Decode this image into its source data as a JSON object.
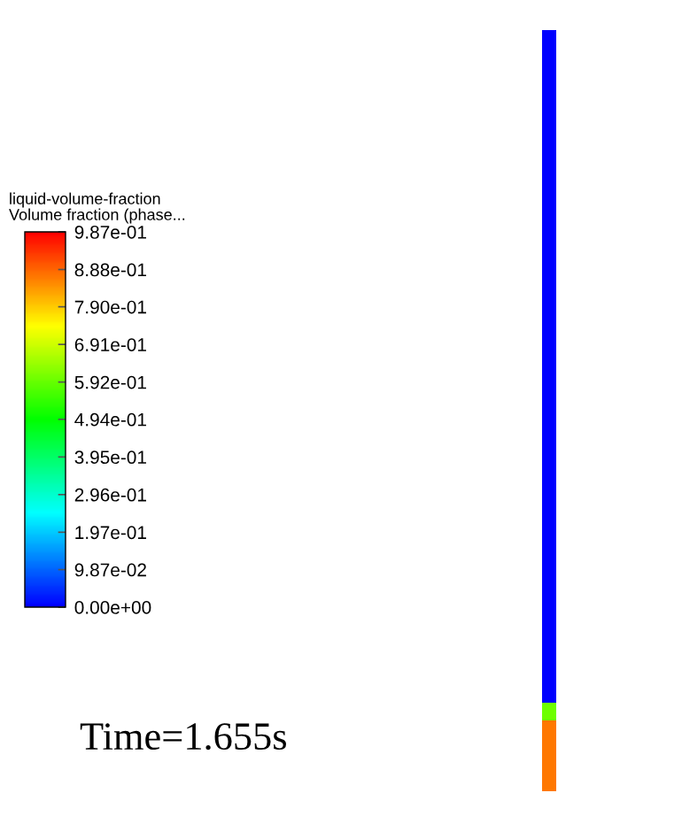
{
  "chart_data": {
    "type": "heatmap",
    "title": "liquid-volume-fraction",
    "clabel": "Volume fraction (phase...",
    "categories": [
      null
    ],
    "y_categories": [
      null,
      null,
      null,
      null,
      null,
      null,
      null,
      null,
      null,
      null,
      null,
      null,
      null,
      null,
      null,
      null,
      null,
      null,
      null,
      null,
      null,
      null,
      null,
      null,
      null,
      null,
      null,
      null,
      null,
      null,
      null,
      null,
      null,
      null,
      null,
      null,
      null,
      null,
      null,
      null,
      null,
      null,
      null
    ],
    "cells": [
      [
        0.0
      ],
      [
        0.0
      ],
      [
        0.0
      ],
      [
        0.0
      ],
      [
        0.0
      ],
      [
        0.0
      ],
      [
        0.0
      ],
      [
        0.0
      ],
      [
        0.0
      ],
      [
        0.0
      ],
      [
        0.0
      ],
      [
        0.0
      ],
      [
        0.0
      ],
      [
        0.0
      ],
      [
        0.0
      ],
      [
        0.0
      ],
      [
        0.0
      ],
      [
        0.0
      ],
      [
        0.0
      ],
      [
        0.0
      ],
      [
        0.0
      ],
      [
        0.0
      ],
      [
        0.0
      ],
      [
        0.0
      ],
      [
        0.0
      ],
      [
        0.0
      ],
      [
        0.0
      ],
      [
        0.0
      ],
      [
        0.0
      ],
      [
        0.0
      ],
      [
        0.0
      ],
      [
        0.0
      ],
      [
        0.0
      ],
      [
        0.0
      ],
      [
        0.0
      ],
      [
        0.0
      ],
      [
        0.0
      ],
      [
        0.0
      ],
      [
        0.6
      ],
      [
        0.87
      ],
      [
        0.87
      ],
      [
        0.87
      ],
      [
        0.87
      ]
    ],
    "clim": [
      0,
      0.987
    ],
    "cticks": [
      {
        "value": 0,
        "label": "0.00e+00"
      },
      {
        "value": 0.0987,
        "label": "9.87e-02"
      },
      {
        "value": 0.197,
        "label": "1.97e-01"
      },
      {
        "value": 0.296,
        "label": "2.96e-01"
      },
      {
        "value": 0.395,
        "label": "3.95e-01"
      },
      {
        "value": 0.494,
        "label": "4.94e-01"
      },
      {
        "value": 0.592,
        "label": "5.92e-01"
      },
      {
        "value": 0.691,
        "label": "6.91e-01"
      },
      {
        "value": 0.79,
        "label": "7.90e-01"
      },
      {
        "value": 0.888,
        "label": "8.88e-01"
      },
      {
        "value": 0.987,
        "label": "9.87e-01"
      }
    ],
    "annotations": [
      "Time=1.655s"
    ]
  }
}
